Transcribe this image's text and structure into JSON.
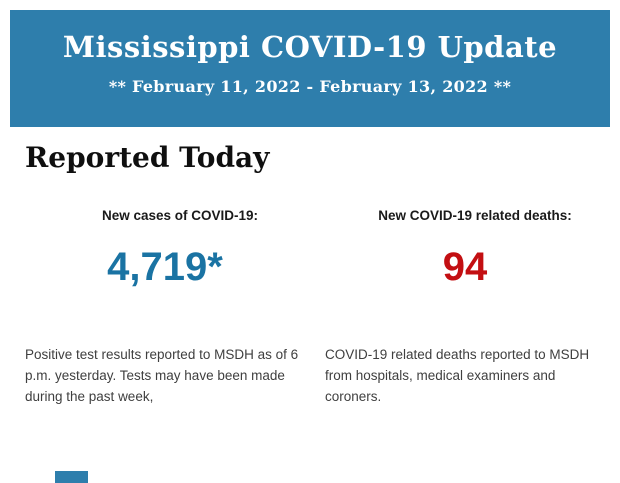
{
  "header": {
    "title": "Mississippi COVID-19 Update",
    "date_range": "** February 11, 2022 - February 13, 2022 **"
  },
  "main": {
    "section_title": "Reported Today",
    "stats": [
      {
        "label": "New cases of COVID-19:",
        "value": "4,719*",
        "value_color": "#1a73a3",
        "description": "Positive test results reported to MSDH as of 6 p.m. yesterday. Tests may have been made during the past week,"
      },
      {
        "label": "New COVID-19 related deaths:",
        "value": "94",
        "value_color": "#c30f12",
        "description": "COVID-19 related deaths reported to MSDH from hospitals, medical examiners and coroners."
      }
    ]
  },
  "colors": {
    "banner_background": "#2e7eac",
    "cases_value": "#1a73a3",
    "deaths_value": "#c30f12"
  }
}
